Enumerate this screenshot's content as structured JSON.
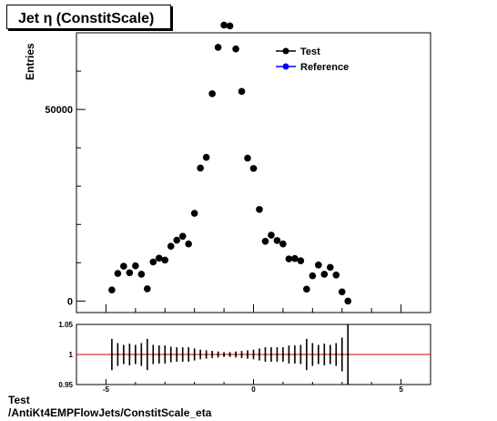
{
  "title": "Jet  η (ConstitScale)",
  "footer": {
    "line1": "Test",
    "line2": "/AntiKt4EMPFlowJets/ConstitScale_eta"
  },
  "colors": {
    "test": "#000000",
    "reference": "#0000ff",
    "ratio_line": "#cc0000"
  },
  "chart_data": [
    {
      "type": "scatter",
      "ylabel": "Entries",
      "xlim": [
        -6,
        6
      ],
      "ylim": [
        -3000,
        70000
      ],
      "yticks_labeled": [
        0,
        50000
      ],
      "legend": {
        "placement": "top-right",
        "entries": [
          "Test",
          "Reference"
        ]
      },
      "series": [
        {
          "name": "Test",
          "x": [
            -4.8,
            -4.6,
            -4.4,
            -4.2,
            -4.0,
            -3.8,
            -3.6,
            -3.4,
            -3.2,
            -3.0,
            -2.8,
            -2.6,
            -2.4,
            -2.2,
            -2.0,
            -1.8,
            -1.6,
            -1.4,
            -1.2,
            -1.0,
            -0.8,
            -0.6,
            -0.4,
            -0.2,
            0.0,
            0.2,
            0.4,
            0.6,
            0.8,
            1.0,
            1.2,
            1.4,
            1.6,
            1.8,
            2.0,
            2.2,
            2.4,
            2.6,
            2.8,
            3.0,
            3.2,
            3.4,
            3.6,
            3.8,
            4.0,
            4.2,
            4.4,
            4.6,
            4.8
          ],
          "y": [
            2900,
            7200,
            9100,
            7400,
            9200,
            7000,
            3200,
            10200,
            11200,
            10700,
            14300,
            15900,
            16900,
            14900,
            22900,
            34700,
            37500,
            54100,
            66200,
            72000,
            71800,
            65800,
            54700,
            37300,
            34600,
            23900,
            15600,
            17200,
            15800,
            14900,
            11000,
            11100,
            10500,
            3100,
            6600,
            9400,
            7000,
            8800,
            6800,
            2400,
            0,
            null,
            null,
            null,
            null,
            null,
            null,
            null,
            null
          ]
        },
        {
          "name": "Reference",
          "x": [],
          "y": []
        }
      ]
    },
    {
      "type": "scatter",
      "xlim": [
        -6,
        6
      ],
      "ylim": [
        0.95,
        1.05
      ],
      "xticks_labeled": [
        -5,
        0,
        5
      ],
      "yticks_labeled": [
        0.95,
        1,
        1.05
      ],
      "reference_line": 1,
      "series": [
        {
          "name": "",
          "x": [
            -4.8,
            -4.6,
            -4.4,
            -4.2,
            -4.0,
            -3.8,
            -3.6,
            -3.4,
            -3.2,
            -3.0,
            -2.8,
            -2.6,
            -2.4,
            -2.2,
            -2.0,
            -1.8,
            -1.6,
            -1.4,
            -1.2,
            -1.0,
            -0.8,
            -0.6,
            -0.4,
            -0.2,
            0.0,
            0.2,
            0.4,
            0.6,
            0.8,
            1.0,
            1.2,
            1.4,
            1.6,
            1.8,
            2.0,
            2.2,
            2.4,
            2.6,
            2.8,
            3.0,
            3.2,
            3.4,
            3.6,
            3.8,
            4.0,
            4.2,
            4.4,
            4.6,
            4.8
          ],
          "y": [
            1,
            1,
            1,
            1,
            1,
            1,
            1,
            1,
            1,
            1,
            1,
            1,
            1,
            1,
            1,
            1,
            1,
            1,
            1,
            1,
            1,
            1,
            1,
            1,
            1,
            1,
            1,
            1,
            1,
            1,
            1,
            1,
            1,
            1,
            1,
            1,
            1,
            1,
            1,
            1,
            1,
            1,
            1,
            1,
            1,
            1,
            1,
            1,
            1
          ],
          "err": [
            0.026,
            0.019,
            0.016,
            0.018,
            0.016,
            0.019,
            0.026,
            0.016,
            0.015,
            0.015,
            0.013,
            0.012,
            0.012,
            0.012,
            0.01,
            0.008,
            0.007,
            0.006,
            0.005,
            0.004,
            0.004,
            0.005,
            0.006,
            0.007,
            0.008,
            0.01,
            0.012,
            0.012,
            0.012,
            0.012,
            0.015,
            0.015,
            0.016,
            0.026,
            0.019,
            0.016,
            0.018,
            0.016,
            0.019,
            0.028,
            0.05,
            null,
            null,
            null,
            null,
            null,
            null,
            null,
            null
          ]
        }
      ]
    }
  ]
}
